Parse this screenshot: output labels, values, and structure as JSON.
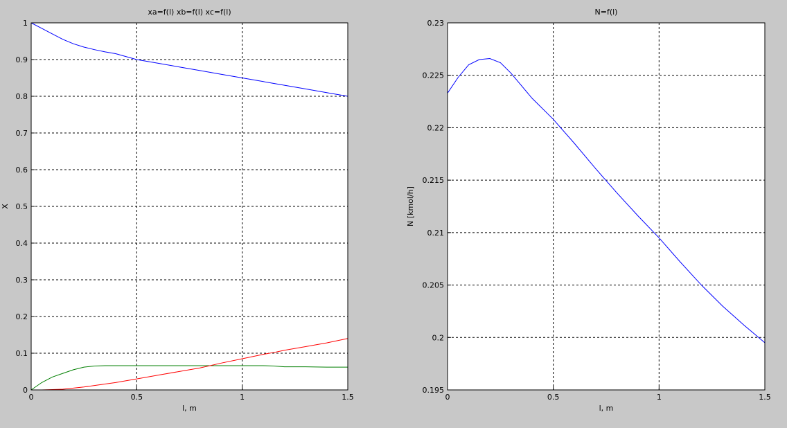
{
  "chart_data": [
    {
      "type": "line",
      "title": "xa=f(l) xb=f(l) xc=f(l)",
      "x_label": "l, m",
      "y_label": "X",
      "x": [
        0,
        0.05,
        0.1,
        0.15,
        0.2,
        0.25,
        0.3,
        0.35,
        0.4,
        0.5,
        0.6,
        0.7,
        0.8,
        0.9,
        1.0,
        1.1,
        1.15,
        1.2,
        1.3,
        1.4,
        1.5
      ],
      "series": [
        {
          "color": "#0000ff",
          "values": [
            1,
            0.985,
            0.97,
            0.955,
            0.943,
            0.934,
            0.927,
            0.921,
            0.916,
            0.9,
            0.89,
            0.88,
            0.87,
            0.86,
            0.85,
            0.84,
            0.835,
            0.83,
            0.82,
            0.81,
            0.8
          ]
        },
        {
          "color": "#007f00",
          "values": [
            0,
            0.02,
            0.035,
            0.045,
            0.055,
            0.062,
            0.065,
            0.066,
            0.066,
            0.066,
            0.066,
            0.066,
            0.066,
            0.066,
            0.066,
            0.066,
            0.065,
            0.063,
            0.063,
            0.062,
            0.062
          ]
        },
        {
          "color": "#ff0000",
          "values": [
            0,
            0,
            0.001,
            0.002,
            0.005,
            0.008,
            0.012,
            0.016,
            0.02,
            0.03,
            0.04,
            0.05,
            0.06,
            0.073,
            0.085,
            0.097,
            0.102,
            0.108,
            0.118,
            0.128,
            0.14
          ]
        }
      ],
      "xlim": [
        0,
        1.5
      ],
      "xticks": [
        0,
        0.5,
        1,
        1.5
      ],
      "ylim": [
        0,
        1
      ],
      "yticks": [
        0,
        0.1,
        0.2,
        0.3,
        0.4,
        0.5,
        0.6,
        0.7,
        0.8,
        0.9,
        1
      ],
      "grid": true
    },
    {
      "type": "line",
      "title": "N=f(l)",
      "x_label": "l, m",
      "y_label": "N [kmol/h]",
      "x": [
        0,
        0.05,
        0.1,
        0.15,
        0.2,
        0.25,
        0.3,
        0.4,
        0.5,
        0.6,
        0.7,
        0.8,
        0.9,
        1.0,
        1.1,
        1.2,
        1.3,
        1.4,
        1.5
      ],
      "series": [
        {
          "color": "#0000ff",
          "values": [
            0.2233,
            0.2248,
            0.226,
            0.2265,
            0.2266,
            0.2262,
            0.2252,
            0.2228,
            0.2208,
            0.2185,
            0.2161,
            0.2138,
            0.2116,
            0.2095,
            0.2072,
            0.205,
            0.203,
            0.2012,
            0.1995
          ]
        }
      ],
      "xlim": [
        0,
        1.5
      ],
      "xticks": [
        0,
        0.5,
        1,
        1.5
      ],
      "ylim": [
        0.195,
        0.23
      ],
      "yticks": [
        0.195,
        0.2,
        0.205,
        0.21,
        0.215,
        0.22,
        0.225,
        0.23
      ],
      "grid": true
    }
  ]
}
